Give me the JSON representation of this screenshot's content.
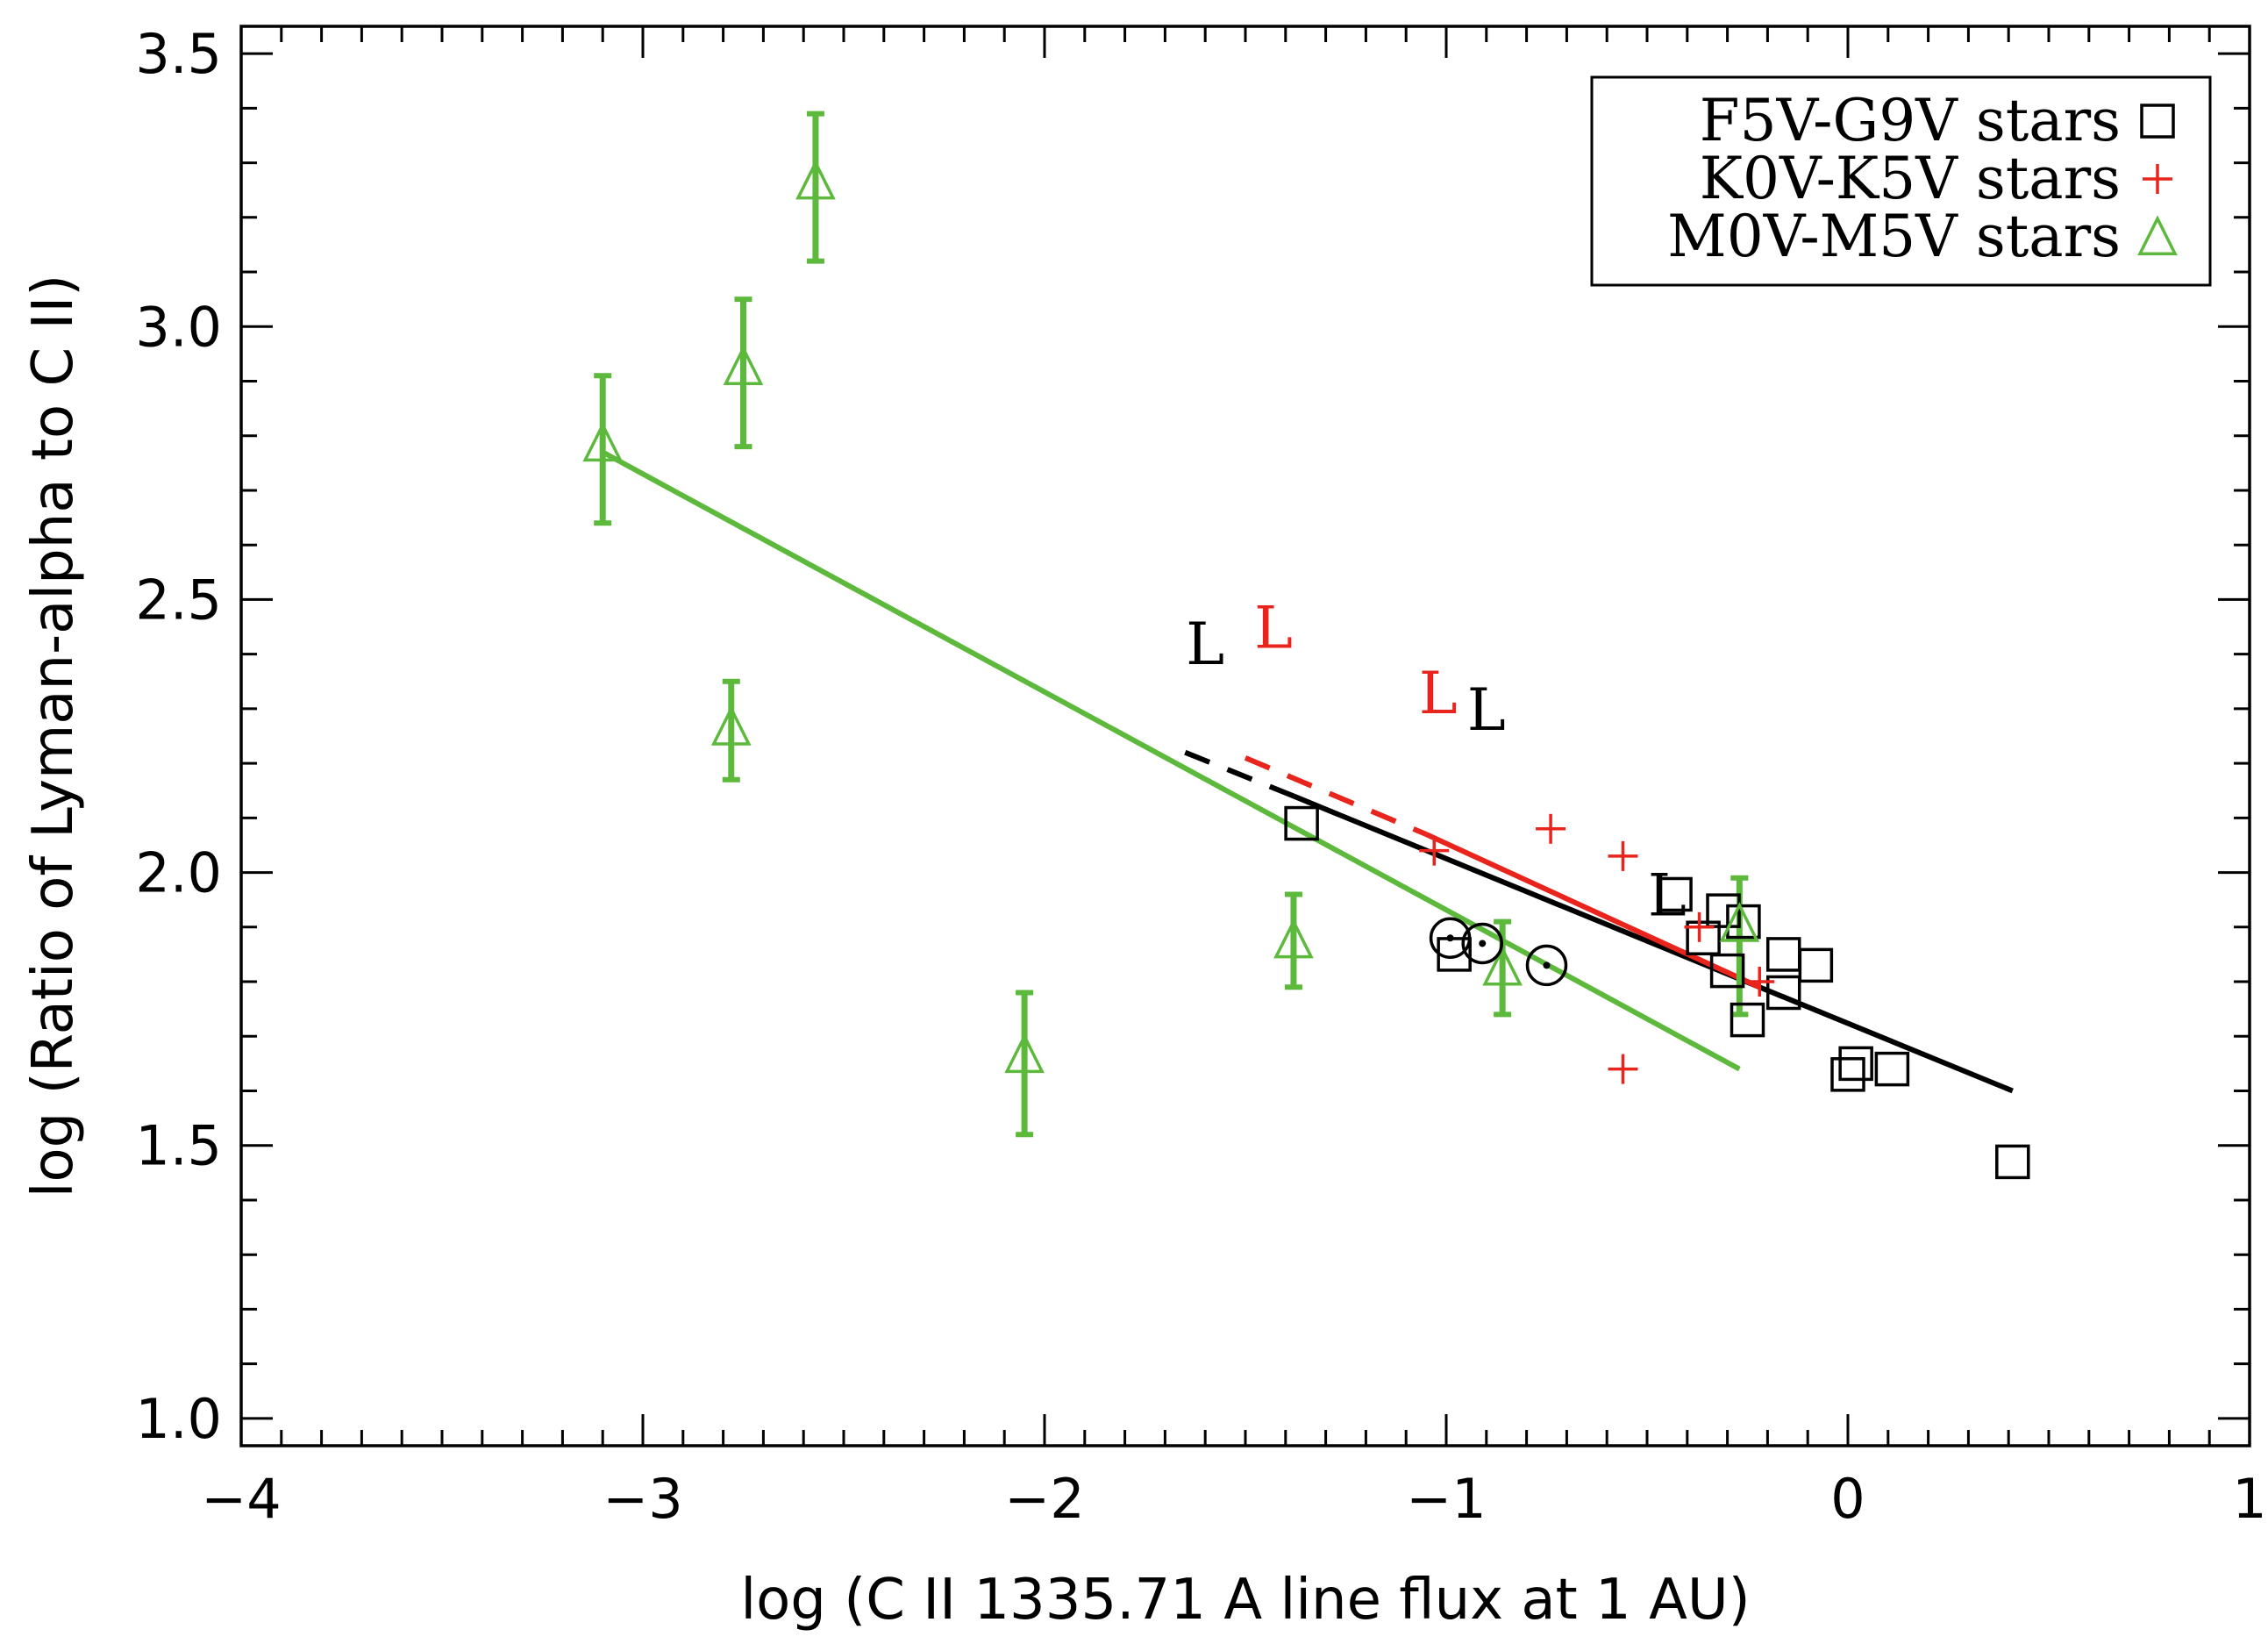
{
  "chart_data": {
    "type": "scatter",
    "title": "",
    "xlabel": "log (C II 1335.71 A line flux at 1 AU)",
    "ylabel": "log (Ratio of Lyman-alpha to C II)",
    "xlim": [
      -4,
      1
    ],
    "ylim": [
      0.95,
      3.55
    ],
    "x_tick_labels": [
      "−4",
      "−3",
      "−2",
      "−1",
      "0",
      "1"
    ],
    "x_ticks": [
      -4,
      -3,
      -2,
      -1,
      0,
      1
    ],
    "y_tick_labels": [
      "1.0",
      "1.5",
      "2.0",
      "2.5",
      "3.0",
      "3.5"
    ],
    "y_ticks": [
      1.0,
      1.5,
      2.0,
      2.5,
      3.0,
      3.5
    ],
    "grid": false,
    "legend_position": "top-right",
    "colors": {
      "black": "#000000",
      "red": "#e8241c",
      "green": "#5cb93c"
    },
    "series": [
      {
        "name": "F5V-G9V stars",
        "marker": "square",
        "color": "#000000",
        "points": [
          [
            -1.36,
            2.09
          ],
          [
            -0.98,
            1.85
          ],
          [
            -0.43,
            1.96
          ],
          [
            -0.36,
            1.88
          ],
          [
            -0.31,
            1.93
          ],
          [
            -0.3,
            1.82
          ],
          [
            -0.26,
            1.91
          ],
          [
            -0.25,
            1.73
          ],
          [
            -0.16,
            1.78
          ],
          [
            -0.16,
            1.85
          ],
          [
            -0.08,
            1.83
          ],
          [
            0.0,
            1.63
          ],
          [
            0.02,
            1.65
          ],
          [
            0.11,
            1.64
          ],
          [
            0.41,
            1.47
          ]
        ]
      },
      {
        "name": "K0V-K5V stars",
        "marker": "plus",
        "color": "#e8241c",
        "points": [
          [
            -1.03,
            2.04
          ],
          [
            -0.74,
            2.08
          ],
          [
            -0.56,
            2.03
          ],
          [
            -0.56,
            1.64
          ],
          [
            -0.37,
            1.9
          ],
          [
            -0.22,
            1.8
          ]
        ]
      },
      {
        "name": "M0V-M5V stars",
        "marker": "triangle",
        "color": "#5cb93c",
        "points": [
          {
            "x": -3.1,
            "y": 2.78,
            "lo": 2.64,
            "hi": 2.91
          },
          {
            "x": -2.75,
            "y": 2.92,
            "lo": 2.78,
            "hi": 3.05
          },
          {
            "x": -2.57,
            "y": 3.26,
            "lo": 3.12,
            "hi": 3.39
          },
          {
            "x": -2.78,
            "y": 2.26,
            "lo": 2.17,
            "hi": 2.35
          },
          {
            "x": -2.05,
            "y": 1.66,
            "lo": 1.52,
            "hi": 1.78
          },
          {
            "x": -1.38,
            "y": 1.87,
            "lo": 1.79,
            "hi": 1.96
          },
          {
            "x": -0.86,
            "y": 1.82,
            "lo": 1.74,
            "hi": 1.91
          },
          {
            "x": -0.27,
            "y": 1.9,
            "lo": 1.74,
            "hi": 1.99
          }
        ]
      },
      {
        "name": "",
        "marker": "sun",
        "color": "#000000",
        "points": [
          [
            -0.99,
            1.88
          ],
          [
            -0.91,
            1.87
          ],
          [
            -0.75,
            1.83
          ]
        ]
      }
    ],
    "upper_limits": [
      {
        "x": -1.6,
        "y": 2.42,
        "color": "#000000"
      },
      {
        "x": -1.43,
        "y": 2.45,
        "color": "#e8241c"
      },
      {
        "x": -1.02,
        "y": 2.33,
        "color": "#e8241c"
      },
      {
        "x": -0.9,
        "y": 2.3,
        "color": "#000000"
      },
      {
        "x": -0.45,
        "y": 1.96,
        "color": "#000000"
      }
    ],
    "fit_lines": [
      {
        "color": "#000000",
        "solid": [
          [
            -1.38,
            2.14
          ],
          [
            0.41,
            1.6
          ]
        ],
        "dashed": [
          [
            -1.65,
            2.22
          ],
          [
            -1.38,
            2.14
          ]
        ]
      },
      {
        "color": "#e8241c",
        "solid": [
          [
            -1.05,
            2.07
          ],
          [
            -0.22,
            1.79
          ]
        ],
        "dashed": [
          [
            -1.5,
            2.21
          ],
          [
            -1.05,
            2.07
          ]
        ]
      },
      {
        "color": "#5cb93c",
        "solid": [
          [
            -3.1,
            2.77
          ],
          [
            -0.27,
            1.64
          ]
        ]
      }
    ],
    "legend": [
      {
        "label": "F5V-G9V stars",
        "marker": "square",
        "color": "#000000"
      },
      {
        "label": "K0V-K5V stars",
        "marker": "plus",
        "color": "#e8241c"
      },
      {
        "label": "M0V-M5V stars",
        "marker": "triangle",
        "color": "#5cb93c"
      }
    ],
    "upper_limit_marker": "L"
  }
}
